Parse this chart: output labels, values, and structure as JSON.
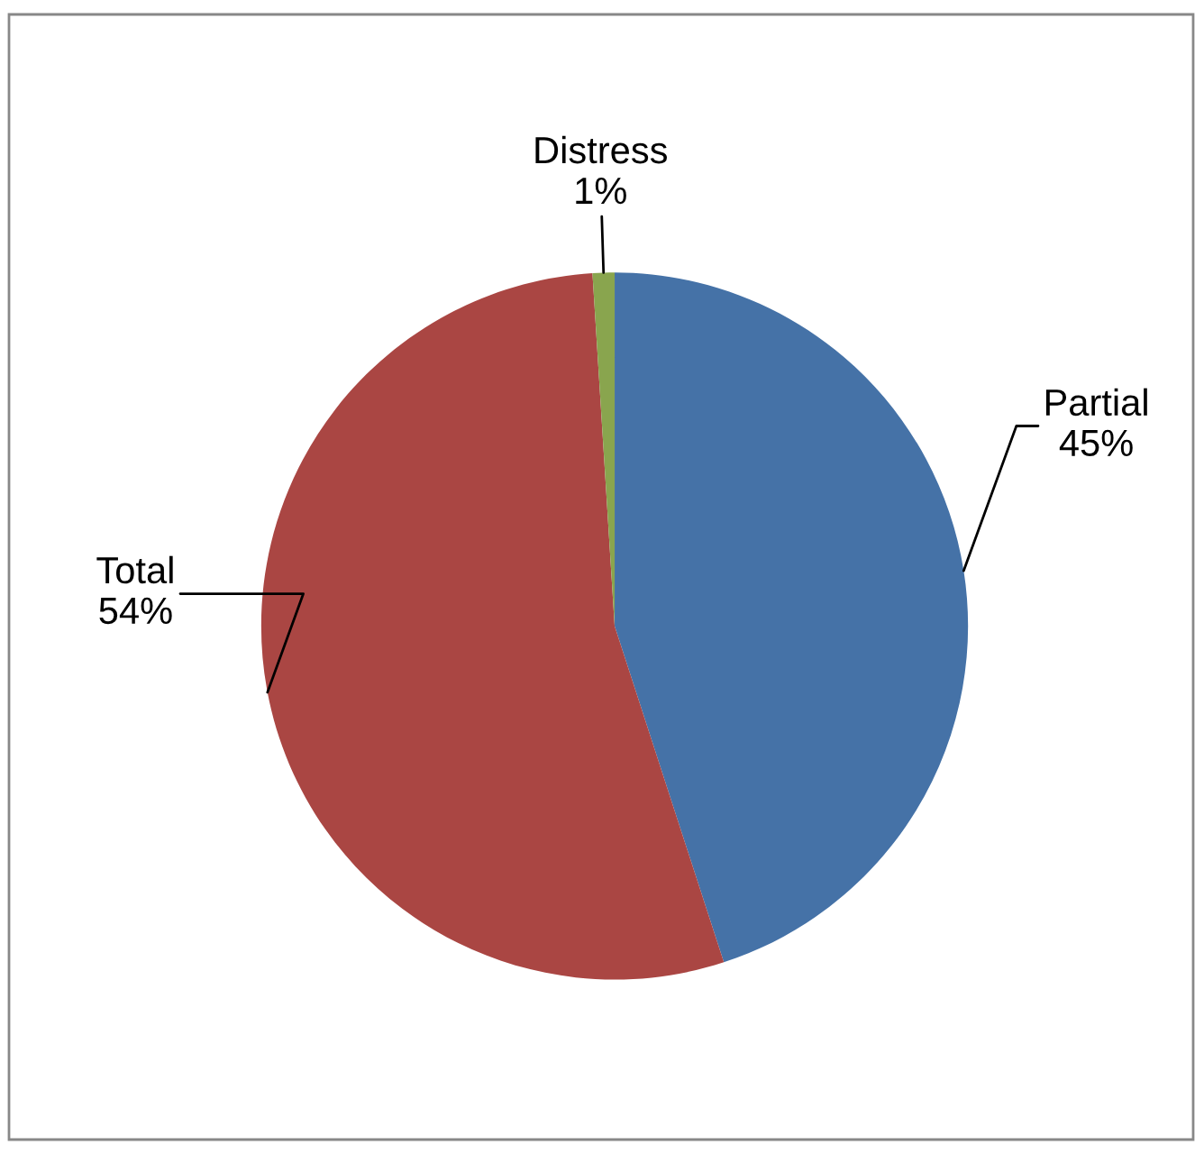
{
  "chart_data": {
    "type": "pie",
    "categories": [
      "Partial",
      "Total",
      "Distress"
    ],
    "values": [
      45,
      54,
      1
    ],
    "value_labels": [
      "45%",
      "54%",
      "1%"
    ],
    "colors": [
      "#4572a7",
      "#aa4643",
      "#89a54e"
    ],
    "legend": false
  }
}
